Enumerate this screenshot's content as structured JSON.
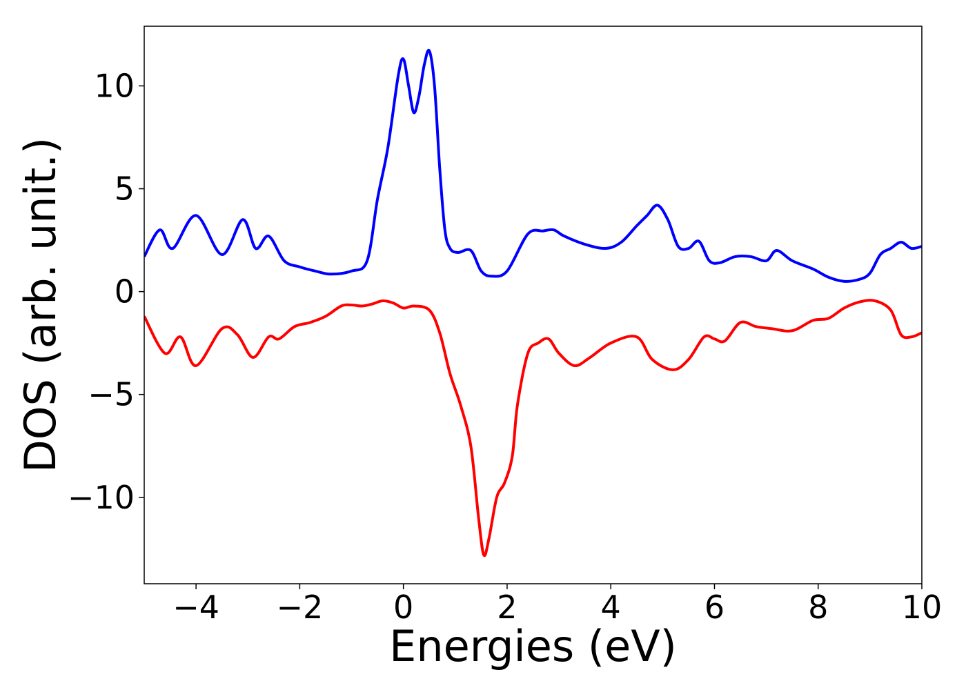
{
  "chart_data": {
    "type": "line",
    "title": "",
    "xlabel": "Energies (eV)",
    "ylabel": "DOS (arb. unit.)",
    "xlim": [
      -5,
      10
    ],
    "ylim": [
      -14.2,
      12.9
    ],
    "x_ticks": [
      -4,
      -2,
      0,
      2,
      4,
      6,
      8,
      10
    ],
    "x_tick_labels": [
      "−4",
      "−2",
      "0",
      "2",
      "4",
      "6",
      "8",
      "10"
    ],
    "y_ticks": [
      10,
      5,
      0,
      -5,
      -10
    ],
    "y_tick_labels": [
      "10",
      "5",
      "0",
      "−5",
      "−10"
    ],
    "grid": false,
    "legend": "none",
    "series": [
      {
        "color": "#0000ff",
        "x": [
          -5.0,
          -4.7,
          -4.45,
          -4.0,
          -3.5,
          -3.1,
          -2.85,
          -2.6,
          -2.3,
          -2.0,
          -1.7,
          -1.4,
          -1.0,
          -0.7,
          -0.5,
          -0.3,
          -0.1,
          0.0,
          0.1,
          0.2,
          0.3,
          0.4,
          0.5,
          0.6,
          0.7,
          0.8,
          0.9,
          1.05,
          1.3,
          1.5,
          1.7,
          2.0,
          2.4,
          2.7,
          2.9,
          3.1,
          3.5,
          3.9,
          4.2,
          4.5,
          4.7,
          4.9,
          5.1,
          5.3,
          5.5,
          5.7,
          5.9,
          6.1,
          6.4,
          6.7,
          7.0,
          7.2,
          7.5,
          7.9,
          8.2,
          8.5,
          8.8,
          9.0,
          9.2,
          9.4,
          9.6,
          9.8,
          10.0
        ],
        "y": [
          1.7,
          3.0,
          2.1,
          3.7,
          1.8,
          3.5,
          2.1,
          2.7,
          1.5,
          1.2,
          1.0,
          0.85,
          1.0,
          1.5,
          4.5,
          7.0,
          10.5,
          11.3,
          10.0,
          8.7,
          9.5,
          11.0,
          11.7,
          10.0,
          6.0,
          3.0,
          2.1,
          1.9,
          2.0,
          1.0,
          0.75,
          1.0,
          2.8,
          2.95,
          3.0,
          2.7,
          2.3,
          2.1,
          2.4,
          3.2,
          3.7,
          4.2,
          3.5,
          2.2,
          2.1,
          2.45,
          1.5,
          1.4,
          1.7,
          1.7,
          1.5,
          2.0,
          1.5,
          1.1,
          0.7,
          0.5,
          0.6,
          0.9,
          1.8,
          2.1,
          2.4,
          2.1,
          2.2
        ]
      },
      {
        "color": "#ff0000",
        "x": [
          -5.0,
          -4.6,
          -4.3,
          -4.0,
          -3.5,
          -3.2,
          -2.9,
          -2.6,
          -2.4,
          -2.1,
          -1.8,
          -1.5,
          -1.2,
          -1.0,
          -0.8,
          -0.6,
          -0.4,
          -0.2,
          0.0,
          0.2,
          0.5,
          0.7,
          0.9,
          1.1,
          1.3,
          1.45,
          1.55,
          1.65,
          1.8,
          1.95,
          2.1,
          2.2,
          2.4,
          2.6,
          2.8,
          3.0,
          3.3,
          3.6,
          4.0,
          4.5,
          4.8,
          5.2,
          5.5,
          5.8,
          6.0,
          6.2,
          6.5,
          6.8,
          7.1,
          7.5,
          7.9,
          8.2,
          8.5,
          8.8,
          9.1,
          9.4,
          9.6,
          9.8,
          10.0
        ],
        "y": [
          -1.2,
          -3.0,
          -2.2,
          -3.6,
          -1.8,
          -2.1,
          -3.2,
          -2.2,
          -2.3,
          -1.7,
          -1.5,
          -1.2,
          -0.7,
          -0.65,
          -0.7,
          -0.6,
          -0.45,
          -0.55,
          -0.8,
          -0.7,
          -0.9,
          -2.0,
          -4.0,
          -5.5,
          -7.5,
          -11.0,
          -12.8,
          -12.0,
          -10.0,
          -9.3,
          -8.0,
          -5.5,
          -3.0,
          -2.5,
          -2.3,
          -3.0,
          -3.6,
          -3.2,
          -2.5,
          -2.2,
          -3.3,
          -3.8,
          -3.3,
          -2.2,
          -2.3,
          -2.4,
          -1.5,
          -1.7,
          -1.8,
          -1.9,
          -1.4,
          -1.3,
          -0.8,
          -0.5,
          -0.45,
          -0.9,
          -2.1,
          -2.2,
          -2.0
        ]
      }
    ]
  }
}
